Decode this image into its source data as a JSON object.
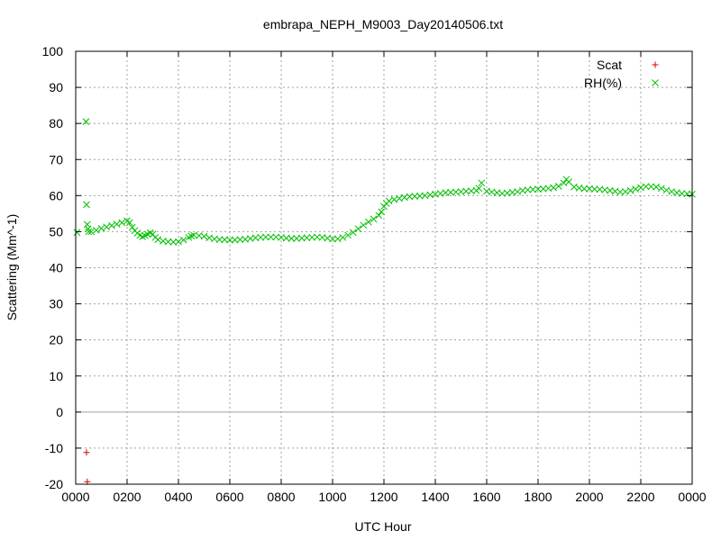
{
  "chart_data": {
    "type": "scatter",
    "title": "embrapa_NEPH_M9003_Day20140506.txt",
    "xlabel": "UTC Hour",
    "ylabel": "Scattering (Mm^-1)",
    "xlim": [
      0,
      24
    ],
    "ylim": [
      -20,
      100
    ],
    "x_ticks": [
      0,
      2,
      4,
      6,
      8,
      10,
      12,
      14,
      16,
      18,
      20,
      22,
      24
    ],
    "x_tick_labels": [
      "0000",
      "0200",
      "0400",
      "0600",
      "0800",
      "1000",
      "1200",
      "1400",
      "1600",
      "1800",
      "2000",
      "2200",
      "0000"
    ],
    "y_ticks": [
      -20,
      -10,
      0,
      10,
      20,
      30,
      40,
      50,
      60,
      70,
      80,
      90,
      100
    ],
    "grid": true,
    "zero_line": true,
    "legend_position": "top-right",
    "series": [
      {
        "name": "Scat",
        "marker": "plus",
        "color": "#d40000",
        "x": [
          0.42,
          0.45
        ],
        "y": [
          -11.2,
          -19.3
        ]
      },
      {
        "name": "RH(%)",
        "marker": "cross",
        "color": "#00c000",
        "x": [
          0.05,
          0.4,
          0.42,
          0.45,
          0.48,
          0.5,
          0.6,
          0.8,
          1.0,
          1.2,
          1.4,
          1.6,
          1.8,
          2.0,
          2.1,
          2.2,
          2.3,
          2.4,
          2.5,
          2.6,
          2.7,
          2.8,
          2.9,
          3.0,
          3.1,
          3.2,
          3.4,
          3.6,
          3.8,
          4.0,
          4.2,
          4.4,
          4.5,
          4.6,
          4.8,
          5.0,
          5.2,
          5.4,
          5.6,
          5.8,
          6.0,
          6.2,
          6.4,
          6.6,
          6.8,
          7.0,
          7.2,
          7.4,
          7.6,
          7.8,
          8.0,
          8.2,
          8.4,
          8.6,
          8.8,
          9.0,
          9.2,
          9.4,
          9.6,
          9.8,
          10.0,
          10.2,
          10.4,
          10.6,
          10.8,
          11.0,
          11.2,
          11.4,
          11.6,
          11.8,
          11.9,
          12.0,
          12.1,
          12.2,
          12.4,
          12.6,
          12.8,
          13.0,
          13.2,
          13.4,
          13.6,
          13.8,
          14.0,
          14.2,
          14.4,
          14.6,
          14.8,
          15.0,
          15.2,
          15.4,
          15.6,
          15.7,
          15.8,
          16.0,
          16.2,
          16.4,
          16.6,
          16.8,
          17.0,
          17.2,
          17.4,
          17.6,
          17.8,
          18.0,
          18.2,
          18.4,
          18.6,
          18.8,
          19.0,
          19.1,
          19.2,
          19.4,
          19.6,
          19.8,
          20.0,
          20.2,
          20.4,
          20.6,
          20.8,
          21.0,
          21.2,
          21.4,
          21.6,
          21.8,
          22.0,
          22.2,
          22.4,
          22.6,
          22.8,
          23.0,
          23.2,
          23.4,
          23.6,
          23.8,
          24.0
        ],
        "y": [
          49.8,
          80.5,
          57.5,
          52.0,
          50.8,
          50.0,
          50.0,
          50.4,
          50.9,
          51.3,
          51.7,
          52.1,
          52.5,
          53.0,
          52.5,
          51.2,
          50.3,
          49.6,
          49.0,
          48.6,
          48.9,
          49.3,
          49.7,
          49.3,
          48.4,
          47.8,
          47.4,
          47.2,
          47.1,
          47.2,
          47.7,
          48.4,
          48.8,
          49.0,
          48.9,
          48.7,
          48.3,
          48.0,
          47.8,
          47.8,
          47.7,
          47.7,
          47.8,
          47.9,
          48.1,
          48.3,
          48.4,
          48.5,
          48.5,
          48.5,
          48.4,
          48.2,
          48.1,
          48.1,
          48.2,
          48.3,
          48.4,
          48.5,
          48.4,
          48.2,
          48.0,
          48.0,
          48.4,
          49.0,
          49.8,
          50.8,
          51.8,
          52.7,
          53.5,
          54.5,
          55.5,
          57.0,
          57.8,
          58.5,
          58.9,
          59.2,
          59.5,
          59.7,
          59.8,
          59.9,
          60.0,
          60.2,
          60.4,
          60.6,
          60.8,
          60.9,
          61.0,
          61.1,
          61.2,
          61.3,
          61.4,
          62.0,
          63.5,
          61.2,
          61.0,
          60.8,
          60.6,
          60.7,
          60.9,
          61.1,
          61.4,
          61.6,
          61.7,
          61.8,
          61.9,
          62.0,
          62.2,
          62.6,
          63.5,
          64.5,
          63.8,
          62.4,
          62.1,
          61.9,
          61.9,
          61.8,
          61.7,
          61.6,
          61.4,
          61.2,
          61.0,
          61.1,
          61.4,
          61.8,
          62.2,
          62.5,
          62.5,
          62.4,
          62.0,
          61.5,
          61.1,
          60.8,
          60.6,
          60.5,
          60.4
        ]
      }
    ]
  }
}
